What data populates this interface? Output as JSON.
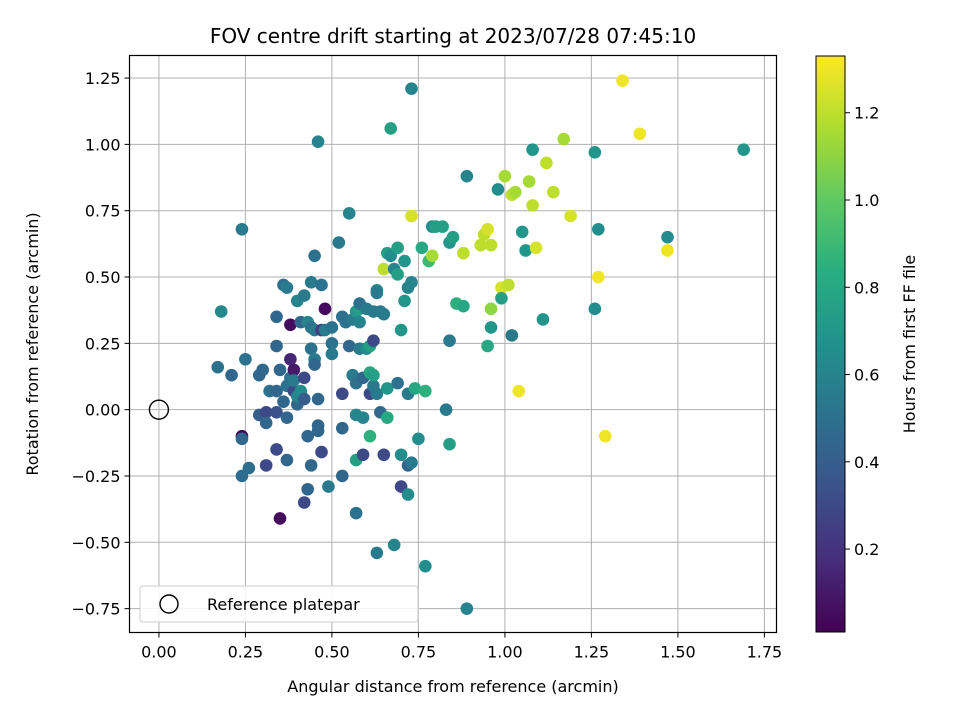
{
  "chart_data": {
    "type": "scatter",
    "title": "FOV centre drift starting at 2023/07/28 07:45:10",
    "xlabel": "Angular distance from reference (arcmin)",
    "ylabel": "Rotation from reference (arcmin)",
    "xlim": [
      -0.085,
      1.785
    ],
    "ylim": [
      -0.84,
      1.335
    ],
    "xticks": [
      0.0,
      0.25,
      0.5,
      0.75,
      1.0,
      1.25,
      1.5,
      1.75
    ],
    "xtick_labels": [
      "0.00",
      "0.25",
      "0.50",
      "0.75",
      "1.00",
      "1.25",
      "1.50",
      "1.75"
    ],
    "yticks": [
      -0.75,
      -0.5,
      -0.25,
      0.0,
      0.25,
      0.5,
      0.75,
      1.0,
      1.25
    ],
    "ytick_labels": [
      "−0.75",
      "−0.50",
      "−0.25",
      "0.00",
      "0.25",
      "0.50",
      "0.75",
      "1.00",
      "1.25"
    ],
    "grid": true,
    "legend": {
      "location": "lower-left",
      "entries": [
        "Reference platepar"
      ]
    },
    "reference_point": {
      "x": 0.0,
      "y": 0.0,
      "marker": "open-circle"
    },
    "colorbar": {
      "label": "Hours from first FF file",
      "colormap": "viridis",
      "range": [
        0.01,
        1.33
      ],
      "ticks": [
        0.2,
        0.4,
        0.6,
        0.8,
        1.0,
        1.2
      ],
      "tick_labels": [
        "0.2",
        "0.4",
        "0.6",
        "0.8",
        "1.0",
        "1.2"
      ]
    },
    "points": [
      {
        "x": 0.17,
        "y": 0.16,
        "c": 0.5
      },
      {
        "x": 0.18,
        "y": 0.37,
        "c": 0.62
      },
      {
        "x": 0.21,
        "y": 0.13,
        "c": 0.45
      },
      {
        "x": 0.24,
        "y": -0.1,
        "c": 0.02
      },
      {
        "x": 0.24,
        "y": -0.11,
        "c": 0.45
      },
      {
        "x": 0.24,
        "y": 0.68,
        "c": 0.55
      },
      {
        "x": 0.24,
        "y": -0.25,
        "c": 0.48
      },
      {
        "x": 0.25,
        "y": 0.19,
        "c": 0.5
      },
      {
        "x": 0.26,
        "y": -0.22,
        "c": 0.48
      },
      {
        "x": 0.29,
        "y": 0.13,
        "c": 0.45
      },
      {
        "x": 0.29,
        "y": -0.02,
        "c": 0.4
      },
      {
        "x": 0.3,
        "y": 0.15,
        "c": 0.45
      },
      {
        "x": 0.31,
        "y": -0.01,
        "c": 0.3
      },
      {
        "x": 0.31,
        "y": -0.05,
        "c": 0.45
      },
      {
        "x": 0.31,
        "y": -0.21,
        "c": 0.3
      },
      {
        "x": 0.32,
        "y": 0.07,
        "c": 0.5
      },
      {
        "x": 0.34,
        "y": 0.35,
        "c": 0.45
      },
      {
        "x": 0.34,
        "y": 0.24,
        "c": 0.45
      },
      {
        "x": 0.34,
        "y": 0.07,
        "c": 0.45
      },
      {
        "x": 0.34,
        "y": -0.15,
        "c": 0.3
      },
      {
        "x": 0.34,
        "y": -0.01,
        "c": 0.35
      },
      {
        "x": 0.35,
        "y": 0.15,
        "c": 0.45
      },
      {
        "x": 0.35,
        "y": -0.41,
        "c": 0.05
      },
      {
        "x": 0.36,
        "y": 0.47,
        "c": 0.5
      },
      {
        "x": 0.36,
        "y": 0.03,
        "c": 0.45
      },
      {
        "x": 0.37,
        "y": 0.46,
        "c": 0.55
      },
      {
        "x": 0.37,
        "y": -0.03,
        "c": 0.45
      },
      {
        "x": 0.37,
        "y": 0.09,
        "c": 0.5
      },
      {
        "x": 0.37,
        "y": -0.19,
        "c": 0.45
      },
      {
        "x": 0.38,
        "y": 0.19,
        "c": 0.15
      },
      {
        "x": 0.38,
        "y": 0.12,
        "c": 0.5
      },
      {
        "x": 0.38,
        "y": 0.32,
        "c": 0.05
      },
      {
        "x": 0.39,
        "y": 0.15,
        "c": 0.1
      },
      {
        "x": 0.39,
        "y": 0.07,
        "c": 0.3
      },
      {
        "x": 0.39,
        "y": 0.11,
        "c": 0.55
      },
      {
        "x": 0.4,
        "y": 0.41,
        "c": 0.6
      },
      {
        "x": 0.4,
        "y": 0.02,
        "c": 0.45
      },
      {
        "x": 0.4,
        "y": 0.05,
        "c": 0.6
      },
      {
        "x": 0.41,
        "y": 0.07,
        "c": 0.65
      },
      {
        "x": 0.41,
        "y": 0.33,
        "c": 0.45
      },
      {
        "x": 0.42,
        "y": 0.43,
        "c": 0.55
      },
      {
        "x": 0.42,
        "y": 0.04,
        "c": 0.4
      },
      {
        "x": 0.42,
        "y": 0.12,
        "c": 0.3
      },
      {
        "x": 0.42,
        "y": -0.35,
        "c": 0.3
      },
      {
        "x": 0.43,
        "y": 0.33,
        "c": 0.6
      },
      {
        "x": 0.43,
        "y": -0.1,
        "c": 0.45
      },
      {
        "x": 0.43,
        "y": -0.3,
        "c": 0.45
      },
      {
        "x": 0.44,
        "y": 0.48,
        "c": 0.55
      },
      {
        "x": 0.44,
        "y": 0.23,
        "c": 0.5
      },
      {
        "x": 0.44,
        "y": 0.31,
        "c": 0.5
      },
      {
        "x": 0.44,
        "y": -0.21,
        "c": 0.45
      },
      {
        "x": 0.45,
        "y": 0.3,
        "c": 0.55
      },
      {
        "x": 0.45,
        "y": 0.19,
        "c": 0.55
      },
      {
        "x": 0.45,
        "y": 0.17,
        "c": 0.45
      },
      {
        "x": 0.45,
        "y": 0.58,
        "c": 0.5
      },
      {
        "x": 0.46,
        "y": 0.04,
        "c": 0.45
      },
      {
        "x": 0.46,
        "y": 1.01,
        "c": 0.6
      },
      {
        "x": 0.46,
        "y": -0.08,
        "c": 0.45
      },
      {
        "x": 0.46,
        "y": -0.06,
        "c": 0.45
      },
      {
        "x": 0.47,
        "y": 0.3,
        "c": 0.25
      },
      {
        "x": 0.47,
        "y": -0.16,
        "c": 0.3
      },
      {
        "x": 0.47,
        "y": 0.47,
        "c": 0.5
      },
      {
        "x": 0.48,
        "y": 0.38,
        "c": 0.05
      },
      {
        "x": 0.48,
        "y": 0.3,
        "c": 0.55
      },
      {
        "x": 0.49,
        "y": -0.29,
        "c": 0.55
      },
      {
        "x": 0.5,
        "y": 0.25,
        "c": 0.5
      },
      {
        "x": 0.5,
        "y": 0.31,
        "c": 0.5
      },
      {
        "x": 0.5,
        "y": 0.21,
        "c": 0.55
      },
      {
        "x": 0.52,
        "y": 0.63,
        "c": 0.55
      },
      {
        "x": 0.53,
        "y": 0.35,
        "c": 0.5
      },
      {
        "x": 0.53,
        "y": 0.06,
        "c": 0.3
      },
      {
        "x": 0.53,
        "y": -0.07,
        "c": 0.45
      },
      {
        "x": 0.53,
        "y": -0.25,
        "c": 0.45
      },
      {
        "x": 0.54,
        "y": 0.33,
        "c": 0.5
      },
      {
        "x": 0.55,
        "y": 0.74,
        "c": 0.6
      },
      {
        "x": 0.55,
        "y": 0.24,
        "c": 0.45
      },
      {
        "x": 0.56,
        "y": 0.34,
        "c": 0.55
      },
      {
        "x": 0.56,
        "y": 0.13,
        "c": 0.55
      },
      {
        "x": 0.57,
        "y": 0.37,
        "c": 0.7
      },
      {
        "x": 0.57,
        "y": -0.19,
        "c": 0.75
      },
      {
        "x": 0.57,
        "y": -0.02,
        "c": 0.6
      },
      {
        "x": 0.57,
        "y": 0.1,
        "c": 0.5
      },
      {
        "x": 0.57,
        "y": -0.39,
        "c": 0.5
      },
      {
        "x": 0.58,
        "y": 0.33,
        "c": 0.6
      },
      {
        "x": 0.58,
        "y": 0.23,
        "c": 0.55
      },
      {
        "x": 0.58,
        "y": 0.38,
        "c": 0.75
      },
      {
        "x": 0.58,
        "y": 0.4,
        "c": 0.5
      },
      {
        "x": 0.59,
        "y": 0.12,
        "c": 0.45
      },
      {
        "x": 0.59,
        "y": -0.17,
        "c": 0.3
      },
      {
        "x": 0.59,
        "y": -0.03,
        "c": 0.6
      },
      {
        "x": 0.6,
        "y": 0.23,
        "c": 0.65
      },
      {
        "x": 0.6,
        "y": 0.38,
        "c": 0.55
      },
      {
        "x": 0.61,
        "y": 0.06,
        "c": 0.3
      },
      {
        "x": 0.61,
        "y": 0.24,
        "c": 0.75
      },
      {
        "x": 0.61,
        "y": 0.14,
        "c": 0.8
      },
      {
        "x": 0.61,
        "y": -0.1,
        "c": 0.85
      },
      {
        "x": 0.62,
        "y": 0.09,
        "c": 0.55
      },
      {
        "x": 0.62,
        "y": 0.26,
        "c": 0.3
      },
      {
        "x": 0.62,
        "y": 0.37,
        "c": 0.55
      },
      {
        "x": 0.62,
        "y": 0.13,
        "c": 0.75
      },
      {
        "x": 0.63,
        "y": 0.45,
        "c": 0.6
      },
      {
        "x": 0.63,
        "y": 0.44,
        "c": 0.55
      },
      {
        "x": 0.63,
        "y": 0.06,
        "c": 0.55
      },
      {
        "x": 0.63,
        "y": -0.54,
        "c": 0.55
      },
      {
        "x": 0.64,
        "y": -0.01,
        "c": 0.45
      },
      {
        "x": 0.64,
        "y": 0.37,
        "c": 0.55
      },
      {
        "x": 0.65,
        "y": 0.36,
        "c": 0.55
      },
      {
        "x": 0.65,
        "y": 0.53,
        "c": 1.2
      },
      {
        "x": 0.65,
        "y": -0.17,
        "c": 0.3
      },
      {
        "x": 0.66,
        "y": 0.59,
        "c": 0.75
      },
      {
        "x": 0.66,
        "y": 0.08,
        "c": 0.7
      },
      {
        "x": 0.66,
        "y": -0.03,
        "c": 0.8
      },
      {
        "x": 0.67,
        "y": 1.06,
        "c": 0.75
      },
      {
        "x": 0.67,
        "y": 0.58,
        "c": 0.65
      },
      {
        "x": 0.68,
        "y": 0.53,
        "c": 0.6
      },
      {
        "x": 0.68,
        "y": -0.51,
        "c": 0.6
      },
      {
        "x": 0.69,
        "y": 0.51,
        "c": 0.75
      },
      {
        "x": 0.69,
        "y": 0.1,
        "c": 0.5
      },
      {
        "x": 0.69,
        "y": 0.61,
        "c": 0.75
      },
      {
        "x": 0.7,
        "y": 0.3,
        "c": 0.7
      },
      {
        "x": 0.7,
        "y": -0.29,
        "c": 0.3
      },
      {
        "x": 0.7,
        "y": -0.17,
        "c": 0.65
      },
      {
        "x": 0.71,
        "y": 0.56,
        "c": 0.7
      },
      {
        "x": 0.71,
        "y": 0.41,
        "c": 0.7
      },
      {
        "x": 0.72,
        "y": 0.46,
        "c": 0.6
      },
      {
        "x": 0.72,
        "y": -0.32,
        "c": 0.65
      },
      {
        "x": 0.72,
        "y": 0.06,
        "c": 0.55
      },
      {
        "x": 0.72,
        "y": -0.21,
        "c": 0.45
      },
      {
        "x": 0.73,
        "y": 0.48,
        "c": 0.6
      },
      {
        "x": 0.73,
        "y": -0.2,
        "c": 0.55
      },
      {
        "x": 0.73,
        "y": 0.73,
        "c": 1.25
      },
      {
        "x": 0.73,
        "y": 1.21,
        "c": 0.6
      },
      {
        "x": 0.74,
        "y": 0.08,
        "c": 0.8
      },
      {
        "x": 0.75,
        "y": -0.11,
        "c": 0.65
      },
      {
        "x": 0.76,
        "y": 0.61,
        "c": 0.8
      },
      {
        "x": 0.77,
        "y": 0.07,
        "c": 0.85
      },
      {
        "x": 0.77,
        "y": -0.59,
        "c": 0.65
      },
      {
        "x": 0.78,
        "y": 0.56,
        "c": 0.9
      },
      {
        "x": 0.79,
        "y": 0.58,
        "c": 1.15
      },
      {
        "x": 0.79,
        "y": 0.69,
        "c": 0.65
      },
      {
        "x": 0.8,
        "y": 0.69,
        "c": 0.75
      },
      {
        "x": 0.82,
        "y": 0.69,
        "c": 0.75
      },
      {
        "x": 0.83,
        "y": 0.0,
        "c": 0.55
      },
      {
        "x": 0.84,
        "y": 0.63,
        "c": 0.7
      },
      {
        "x": 0.84,
        "y": 0.26,
        "c": 0.55
      },
      {
        "x": 0.84,
        "y": -0.13,
        "c": 0.75
      },
      {
        "x": 0.85,
        "y": 0.65,
        "c": 0.75
      },
      {
        "x": 0.86,
        "y": 0.4,
        "c": 0.85
      },
      {
        "x": 0.88,
        "y": 0.59,
        "c": 1.2
      },
      {
        "x": 0.88,
        "y": 0.39,
        "c": 0.8
      },
      {
        "x": 0.89,
        "y": 0.88,
        "c": 0.6
      },
      {
        "x": 0.89,
        "y": -0.75,
        "c": 0.6
      },
      {
        "x": 0.93,
        "y": 0.62,
        "c": 1.2
      },
      {
        "x": 0.94,
        "y": 0.66,
        "c": 1.2
      },
      {
        "x": 0.95,
        "y": 0.68,
        "c": 1.25
      },
      {
        "x": 0.95,
        "y": 0.24,
        "c": 0.8
      },
      {
        "x": 0.96,
        "y": 0.38,
        "c": 1.1
      },
      {
        "x": 0.96,
        "y": 0.62,
        "c": 1.2
      },
      {
        "x": 0.96,
        "y": 0.31,
        "c": 0.7
      },
      {
        "x": 0.98,
        "y": 0.83,
        "c": 0.65
      },
      {
        "x": 0.99,
        "y": 0.46,
        "c": 1.25
      },
      {
        "x": 0.99,
        "y": 0.42,
        "c": 0.75
      },
      {
        "x": 1.0,
        "y": 0.88,
        "c": 1.15
      },
      {
        "x": 1.01,
        "y": 0.47,
        "c": 1.2
      },
      {
        "x": 1.02,
        "y": 0.28,
        "c": 1.25
      },
      {
        "x": 1.02,
        "y": 0.81,
        "c": 1.2
      },
      {
        "x": 1.02,
        "y": 0.28,
        "c": 0.55
      },
      {
        "x": 1.03,
        "y": 0.82,
        "c": 1.15
      },
      {
        "x": 1.04,
        "y": 0.07,
        "c": 1.3
      },
      {
        "x": 1.05,
        "y": 0.67,
        "c": 0.7
      },
      {
        "x": 1.06,
        "y": 0.6,
        "c": 0.7
      },
      {
        "x": 1.07,
        "y": 0.86,
        "c": 1.15
      },
      {
        "x": 1.08,
        "y": 0.98,
        "c": 0.7
      },
      {
        "x": 1.08,
        "y": 0.77,
        "c": 1.2
      },
      {
        "x": 1.09,
        "y": 0.61,
        "c": 1.25
      },
      {
        "x": 1.11,
        "y": 0.34,
        "c": 0.7
      },
      {
        "x": 1.12,
        "y": 0.93,
        "c": 1.2
      },
      {
        "x": 1.14,
        "y": 0.82,
        "c": 1.2
      },
      {
        "x": 1.17,
        "y": 1.02,
        "c": 1.15
      },
      {
        "x": 1.19,
        "y": 0.73,
        "c": 1.25
      },
      {
        "x": 1.26,
        "y": 0.38,
        "c": 0.65
      },
      {
        "x": 1.26,
        "y": 0.97,
        "c": 0.7
      },
      {
        "x": 1.27,
        "y": 0.68,
        "c": 0.65
      },
      {
        "x": 1.27,
        "y": 0.5,
        "c": 1.3
      },
      {
        "x": 1.29,
        "y": -0.1,
        "c": 1.3
      },
      {
        "x": 1.34,
        "y": 1.24,
        "c": 1.3
      },
      {
        "x": 1.39,
        "y": 1.04,
        "c": 1.3
      },
      {
        "x": 1.47,
        "y": 0.6,
        "c": 1.3
      },
      {
        "x": 1.47,
        "y": 0.65,
        "c": 0.65
      },
      {
        "x": 1.69,
        "y": 0.98,
        "c": 0.7
      }
    ]
  }
}
